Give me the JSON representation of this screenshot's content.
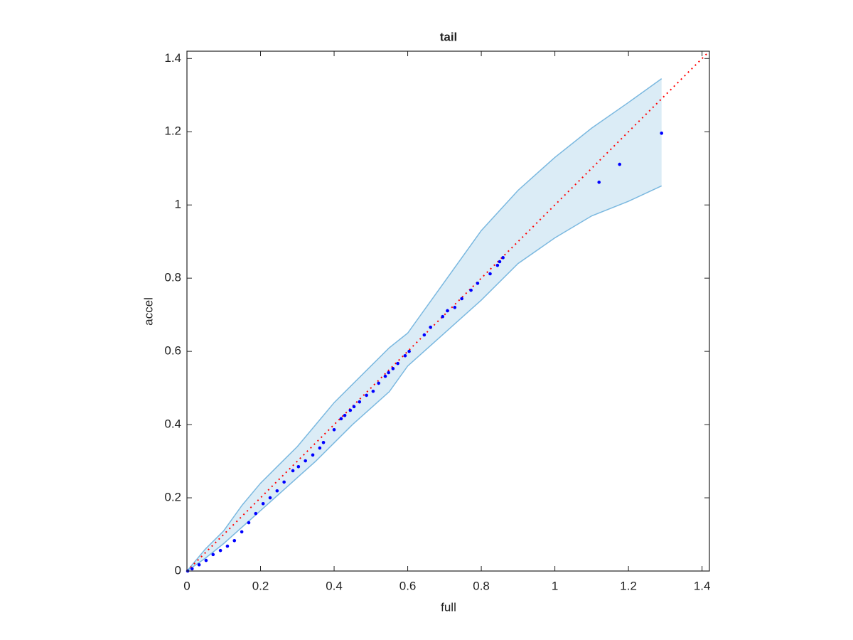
{
  "chart_data": {
    "type": "scatter",
    "title": "tail",
    "x_label": "full",
    "y_label": "accel",
    "xlim": [
      0,
      1.42
    ],
    "ylim": [
      0,
      1.42
    ],
    "xticks": [
      0,
      0.2,
      0.4,
      0.6,
      0.8,
      1,
      1.2,
      1.4
    ],
    "yticks": [
      0,
      0.2,
      0.4,
      0.6,
      0.8,
      1,
      1.2,
      1.4
    ],
    "points": {
      "color": "#0000ff",
      "x": [
        0.002,
        0.014,
        0.033,
        0.052,
        0.071,
        0.091,
        0.11,
        0.129,
        0.149,
        0.168,
        0.187,
        0.207,
        0.226,
        0.245,
        0.264,
        0.288,
        0.303,
        0.322,
        0.342,
        0.361,
        0.371,
        0.4,
        0.419,
        0.429,
        0.444,
        0.454,
        0.469,
        0.488,
        0.506,
        0.521,
        0.539,
        0.548,
        0.56,
        0.573,
        0.593,
        0.604,
        0.645,
        0.662,
        0.695,
        0.708,
        0.728,
        0.747,
        0.772,
        0.79,
        0.824,
        0.844,
        0.85,
        0.859,
        1.12,
        1.176,
        1.29
      ],
      "y": [
        0,
        0.006,
        0.017,
        0.029,
        0.045,
        0.056,
        0.068,
        0.083,
        0.107,
        0.132,
        0.157,
        0.184,
        0.2,
        0.219,
        0.243,
        0.274,
        0.285,
        0.301,
        0.317,
        0.336,
        0.351,
        0.386,
        0.416,
        0.425,
        0.439,
        0.449,
        0.462,
        0.48,
        0.491,
        0.513,
        0.532,
        0.542,
        0.553,
        0.567,
        0.588,
        0.6,
        0.645,
        0.666,
        0.695,
        0.711,
        0.72,
        0.744,
        0.767,
        0.786,
        0.812,
        0.835,
        0.845,
        0.856,
        1.062,
        1.111,
        1.196
      ]
    },
    "band": {
      "color": "#4a9ed4",
      "x": [
        0,
        0.05,
        0.1,
        0.15,
        0.2,
        0.25,
        0.3,
        0.35,
        0.4,
        0.45,
        0.5,
        0.55,
        0.6,
        0.7,
        0.8,
        0.9,
        1.0,
        1.1,
        1.2,
        1.29
      ],
      "upper": [
        0,
        0.06,
        0.11,
        0.18,
        0.24,
        0.29,
        0.34,
        0.4,
        0.46,
        0.51,
        0.56,
        0.61,
        0.65,
        0.79,
        0.93,
        1.04,
        1.13,
        1.21,
        1.28,
        1.345
      ],
      "lower": [
        0,
        0.035,
        0.075,
        0.12,
        0.165,
        0.21,
        0.255,
        0.3,
        0.35,
        0.4,
        0.445,
        0.49,
        0.56,
        0.65,
        0.74,
        0.84,
        0.91,
        0.97,
        1.01,
        1.052
      ]
    },
    "reference_line": {
      "color": "#ff0000",
      "x": [
        0,
        1.42
      ],
      "y": [
        0,
        1.42
      ]
    }
  }
}
